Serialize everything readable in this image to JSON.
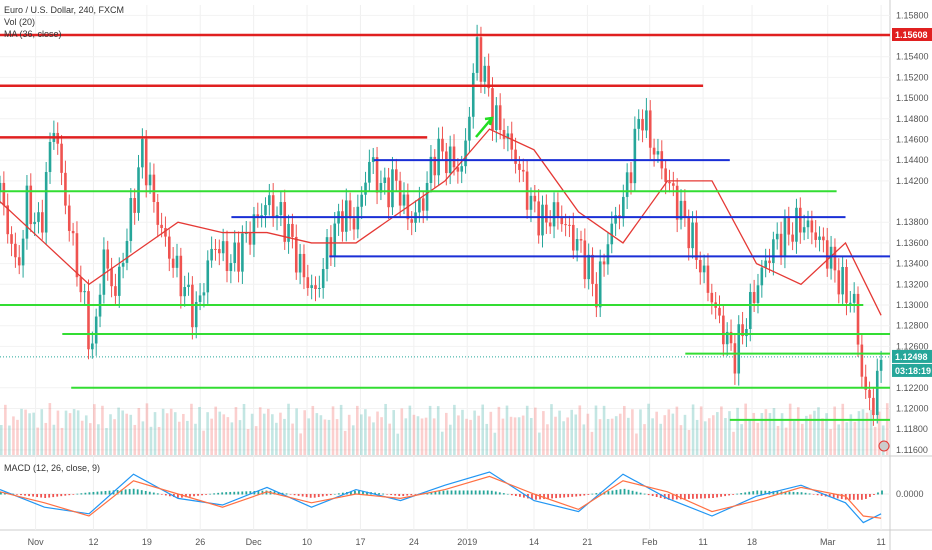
{
  "legend": {
    "symbol": "Euro / U.S. Dollar, 240, FXCM",
    "volume": "Vol (20)",
    "ma": "MA (36, close)",
    "macd": "MACD (12, 26, close, 9)"
  },
  "chart_data": {
    "type": "candlestick",
    "y_ticks": [
      "1.15800",
      "1.15400",
      "1.15200",
      "1.15000",
      "1.14800",
      "1.14600",
      "1.14400",
      "1.14200",
      "1.13800",
      "1.13600",
      "1.13400",
      "1.13200",
      "1.13000",
      "1.12800",
      "1.12600",
      "1.12200",
      "1.12000",
      "1.11800",
      "1.11600"
    ],
    "y_tick_values": [
      1.158,
      1.154,
      1.152,
      1.15,
      1.148,
      1.146,
      1.144,
      1.142,
      1.138,
      1.136,
      1.134,
      1.132,
      1.13,
      1.128,
      1.126,
      1.122,
      1.12,
      1.118,
      1.116
    ],
    "ylim": [
      1.1155,
      1.159
    ],
    "x_ticks": [
      "Nov",
      "12",
      "19",
      "26",
      "Dec",
      "10",
      "17",
      "24",
      "2019",
      "14",
      "21",
      "Feb",
      "11",
      "18",
      "Mar",
      "11"
    ],
    "x_tick_pos": [
      0.04,
      0.105,
      0.165,
      0.225,
      0.285,
      0.345,
      0.405,
      0.465,
      0.525,
      0.6,
      0.66,
      0.73,
      0.79,
      0.845,
      0.93,
      0.99
    ],
    "price_path": [
      [
        0.0,
        1.141
      ],
      [
        0.02,
        1.133
      ],
      [
        0.03,
        1.14
      ],
      [
        0.045,
        1.137
      ],
      [
        0.06,
        1.148
      ],
      [
        0.075,
        1.139
      ],
      [
        0.09,
        1.132
      ],
      [
        0.105,
        1.125
      ],
      [
        0.115,
        1.135
      ],
      [
        0.13,
        1.131
      ],
      [
        0.15,
        1.14
      ],
      [
        0.16,
        1.145
      ],
      [
        0.175,
        1.139
      ],
      [
        0.19,
        1.135
      ],
      [
        0.205,
        1.132
      ],
      [
        0.22,
        1.129
      ],
      [
        0.24,
        1.136
      ],
      [
        0.26,
        1.134
      ],
      [
        0.28,
        1.137
      ],
      [
        0.3,
        1.14
      ],
      [
        0.32,
        1.138
      ],
      [
        0.34,
        1.133
      ],
      [
        0.355,
        1.131
      ],
      [
        0.37,
        1.136
      ],
      [
        0.385,
        1.139
      ],
      [
        0.4,
        1.138
      ],
      [
        0.415,
        1.144
      ],
      [
        0.43,
        1.141
      ],
      [
        0.445,
        1.142
      ],
      [
        0.46,
        1.138
      ],
      [
        0.475,
        1.14
      ],
      [
        0.49,
        1.145
      ],
      [
        0.505,
        1.144
      ],
      [
        0.52,
        1.143
      ],
      [
        0.535,
        1.155
      ],
      [
        0.545,
        1.152
      ],
      [
        0.555,
        1.148
      ],
      [
        0.565,
        1.147
      ],
      [
        0.58,
        1.144
      ],
      [
        0.595,
        1.14
      ],
      [
        0.61,
        1.138
      ],
      [
        0.625,
        1.139
      ],
      [
        0.64,
        1.137
      ],
      [
        0.655,
        1.135
      ],
      [
        0.67,
        1.131
      ],
      [
        0.685,
        1.137
      ],
      [
        0.7,
        1.14
      ],
      [
        0.71,
        1.144
      ],
      [
        0.72,
        1.149
      ],
      [
        0.73,
        1.146
      ],
      [
        0.745,
        1.143
      ],
      [
        0.76,
        1.14
      ],
      [
        0.775,
        1.137
      ],
      [
        0.79,
        1.133
      ],
      [
        0.81,
        1.128
      ],
      [
        0.825,
        1.125
      ],
      [
        0.84,
        1.129
      ],
      [
        0.855,
        1.133
      ],
      [
        0.87,
        1.136
      ],
      [
        0.885,
        1.137
      ],
      [
        0.9,
        1.138
      ],
      [
        0.915,
        1.137
      ],
      [
        0.93,
        1.135
      ],
      [
        0.945,
        1.132
      ],
      [
        0.96,
        1.13
      ],
      [
        0.97,
        1.122
      ],
      [
        0.98,
        1.12
      ],
      [
        0.99,
        1.1245
      ]
    ],
    "ma_path": [
      [
        0.0,
        1.14
      ],
      [
        0.05,
        1.136
      ],
      [
        0.1,
        1.132
      ],
      [
        0.15,
        1.135
      ],
      [
        0.2,
        1.138
      ],
      [
        0.25,
        1.137
      ],
      [
        0.3,
        1.137
      ],
      [
        0.35,
        1.136
      ],
      [
        0.4,
        1.136
      ],
      [
        0.45,
        1.139
      ],
      [
        0.5,
        1.142
      ],
      [
        0.55,
        1.147
      ],
      [
        0.6,
        1.145
      ],
      [
        0.65,
        1.139
      ],
      [
        0.7,
        1.136
      ],
      [
        0.75,
        1.142
      ],
      [
        0.8,
        1.142
      ],
      [
        0.85,
        1.134
      ],
      [
        0.9,
        1.132
      ],
      [
        0.95,
        1.136
      ],
      [
        0.99,
        1.129
      ]
    ],
    "resistance_lines": [
      {
        "y": 1.1561,
        "x0": 0.0,
        "x1": 1.0,
        "color": "#e02020"
      },
      {
        "y": 1.1512,
        "x0": 0.0,
        "x1": 0.79,
        "color": "#e02020"
      },
      {
        "y": 1.1462,
        "x0": 0.0,
        "x1": 0.48,
        "color": "#e02020"
      }
    ],
    "blue_lines": [
      {
        "y": 1.144,
        "x0": 0.42,
        "x1": 0.82
      },
      {
        "y": 1.1385,
        "x0": 0.26,
        "x1": 0.95
      },
      {
        "y": 1.1347,
        "x0": 0.37,
        "x1": 1.0
      }
    ],
    "green_lines": [
      {
        "y": 1.141,
        "x0": 0.0,
        "x1": 0.94
      },
      {
        "y": 1.13,
        "x0": 0.0,
        "x1": 0.97
      },
      {
        "y": 1.1272,
        "x0": 0.07,
        "x1": 1.0
      },
      {
        "y": 1.1253,
        "x0": 0.77,
        "x1": 1.0
      },
      {
        "y": 1.122,
        "x0": 0.08,
        "x1": 1.0
      },
      {
        "y": 1.1189,
        "x0": 0.82,
        "x1": 1.0
      }
    ],
    "current_price": "1.12498",
    "countdown": "03:18:19",
    "level_tag": "1.15608",
    "macd_ticks": [
      "0.0000"
    ],
    "macd_path_blue": [
      [
        0.0,
        0.2
      ],
      [
        0.05,
        -0.6
      ],
      [
        0.1,
        -0.9
      ],
      [
        0.15,
        0.9
      ],
      [
        0.2,
        -0.2
      ],
      [
        0.25,
        -0.5
      ],
      [
        0.3,
        0.3
      ],
      [
        0.35,
        -0.6
      ],
      [
        0.4,
        0.2
      ],
      [
        0.45,
        -0.3
      ],
      [
        0.5,
        0.4
      ],
      [
        0.55,
        1.0
      ],
      [
        0.6,
        -0.3
      ],
      [
        0.65,
        -0.8
      ],
      [
        0.7,
        0.9
      ],
      [
        0.75,
        -0.2
      ],
      [
        0.8,
        -1.0
      ],
      [
        0.85,
        -0.1
      ],
      [
        0.9,
        0.4
      ],
      [
        0.95,
        -0.4
      ],
      [
        0.97,
        -1.3
      ],
      [
        0.99,
        -0.9
      ]
    ],
    "macd_path_orange": [
      [
        0.0,
        0.1
      ],
      [
        0.05,
        -0.4
      ],
      [
        0.1,
        -1.0
      ],
      [
        0.15,
        0.6
      ],
      [
        0.2,
        0.0
      ],
      [
        0.25,
        -0.6
      ],
      [
        0.3,
        0.1
      ],
      [
        0.35,
        -0.4
      ],
      [
        0.4,
        0.0
      ],
      [
        0.45,
        -0.2
      ],
      [
        0.5,
        0.2
      ],
      [
        0.55,
        0.8
      ],
      [
        0.6,
        0.0
      ],
      [
        0.65,
        -0.7
      ],
      [
        0.7,
        0.6
      ],
      [
        0.75,
        0.1
      ],
      [
        0.8,
        -0.8
      ],
      [
        0.85,
        -0.3
      ],
      [
        0.9,
        0.3
      ],
      [
        0.95,
        -0.1
      ],
      [
        0.97,
        -1.0
      ],
      [
        0.99,
        -1.1
      ]
    ]
  }
}
